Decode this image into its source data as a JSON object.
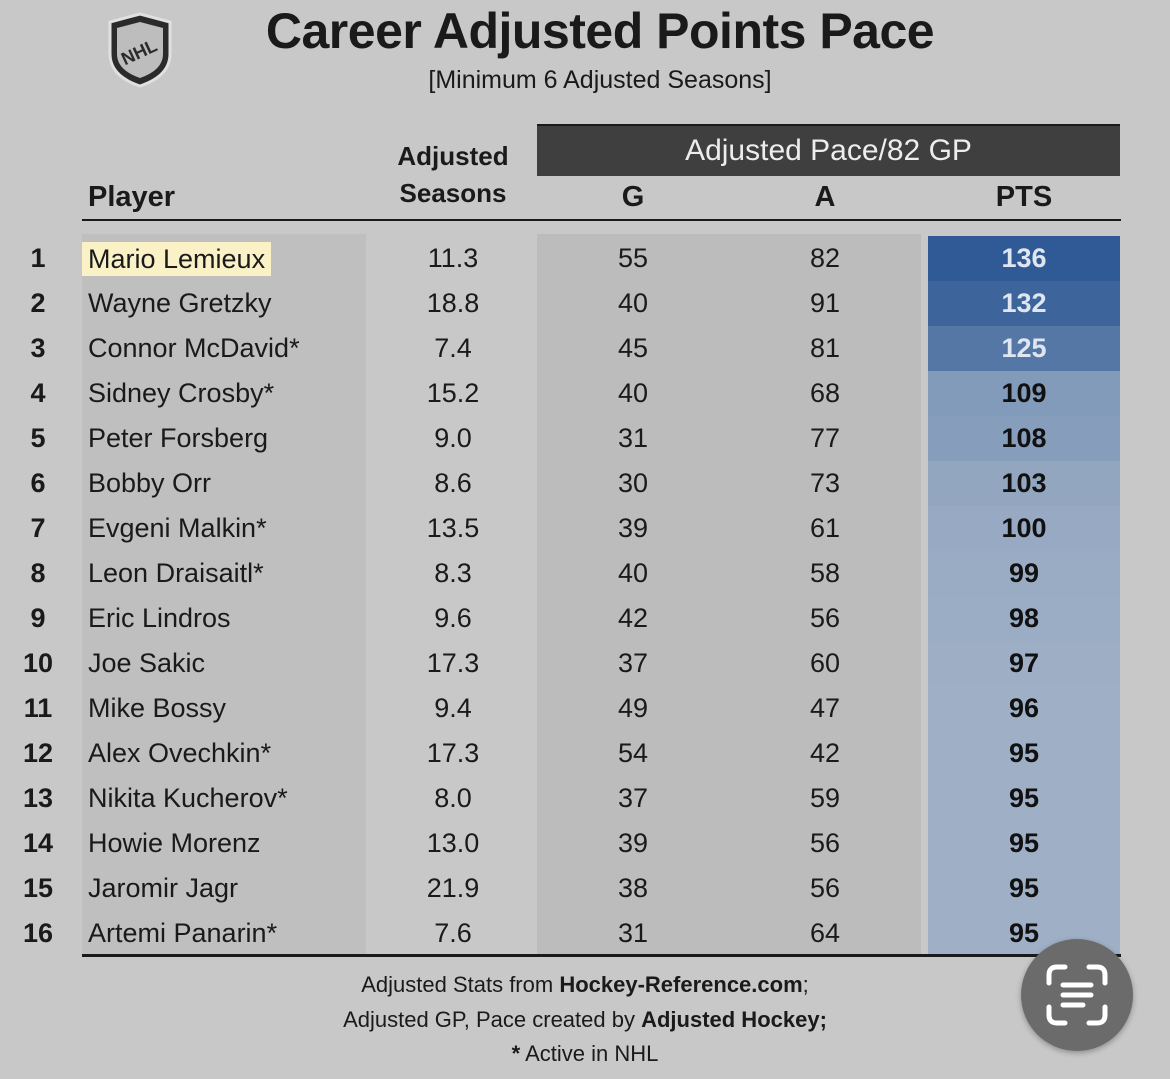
{
  "title": "Career Adjusted Points Pace",
  "subtitle": "[Minimum 6 Adjusted Seasons]",
  "logo": {
    "text": "NHL",
    "icon": "nhl-shield-logo"
  },
  "headers": {
    "player": "Player",
    "adjusted_line1": "Adjusted",
    "adjusted_line2": "Seasons",
    "pace_group": "Adjusted Pace/82 GP",
    "g": "G",
    "a": "A",
    "pts": "PTS"
  },
  "colors": {
    "pts_high": "#2f5a96",
    "pts_low": "#9fb0c6",
    "highlight": "#fbf1c7",
    "pace_header_bg": "#3f3f3f"
  },
  "chart_data": {
    "type": "table",
    "title": "Career Adjusted Points Pace",
    "subtitle": "[Minimum 6 Adjusted Seasons]",
    "columns": [
      "",
      "Player",
      "Adjusted Seasons",
      "G",
      "A",
      "PTS"
    ],
    "rows": [
      {
        "rank": "1",
        "player": "Mario Lemieux",
        "seasons": "11.3",
        "g": "55",
        "a": "82",
        "pts": "136",
        "highlighted": true
      },
      {
        "rank": "2",
        "player": "Wayne Gretzky",
        "seasons": "18.8",
        "g": "40",
        "a": "91",
        "pts": "132"
      },
      {
        "rank": "3",
        "player": "Connor McDavid*",
        "seasons": "7.4",
        "g": "45",
        "a": "81",
        "pts": "125"
      },
      {
        "rank": "4",
        "player": "Sidney Crosby*",
        "seasons": "15.2",
        "g": "40",
        "a": "68",
        "pts": "109"
      },
      {
        "rank": "5",
        "player": "Peter Forsberg",
        "seasons": "9.0",
        "g": "31",
        "a": "77",
        "pts": "108"
      },
      {
        "rank": "6",
        "player": "Bobby Orr",
        "seasons": "8.6",
        "g": "30",
        "a": "73",
        "pts": "103"
      },
      {
        "rank": "7",
        "player": "Evgeni Malkin*",
        "seasons": "13.5",
        "g": "39",
        "a": "61",
        "pts": "100"
      },
      {
        "rank": "8",
        "player": "Leon Draisaitl*",
        "seasons": "8.3",
        "g": "40",
        "a": "58",
        "pts": "99"
      },
      {
        "rank": "9",
        "player": "Eric Lindros",
        "seasons": "9.6",
        "g": "42",
        "a": "56",
        "pts": "98"
      },
      {
        "rank": "10",
        "player": "Joe Sakic",
        "seasons": "17.3",
        "g": "37",
        "a": "60",
        "pts": "97"
      },
      {
        "rank": "11",
        "player": "Mike Bossy",
        "seasons": "9.4",
        "g": "49",
        "a": "47",
        "pts": "96"
      },
      {
        "rank": "12",
        "player": "Alex Ovechkin*",
        "seasons": "17.3",
        "g": "54",
        "a": "42",
        "pts": "95"
      },
      {
        "rank": "13",
        "player": "Nikita Kucherov*",
        "seasons": "8.0",
        "g": "37",
        "a": "59",
        "pts": "95"
      },
      {
        "rank": "14",
        "player": "Howie Morenz",
        "seasons": "13.0",
        "g": "39",
        "a": "56",
        "pts": "95"
      },
      {
        "rank": "15",
        "player": "Jaromir Jagr",
        "seasons": "21.9",
        "g": "38",
        "a": "56",
        "pts": "95"
      },
      {
        "rank": "16",
        "player": "Artemi Panarin*",
        "seasons": "7.6",
        "g": "31",
        "a": "64",
        "pts": "95"
      }
    ]
  },
  "footer": {
    "line1_prefix": "Adjusted Stats from ",
    "line1_bold": "Hockey-Reference.com",
    "line1_suffix": ";",
    "line2_prefix": "Adjusted GP, Pace created by ",
    "line2_bold": "Adjusted Hockey;",
    "line3_bold": "*",
    "line3_suffix": " Active in NHL"
  },
  "overlay": {
    "icon": "text-scan-icon"
  }
}
